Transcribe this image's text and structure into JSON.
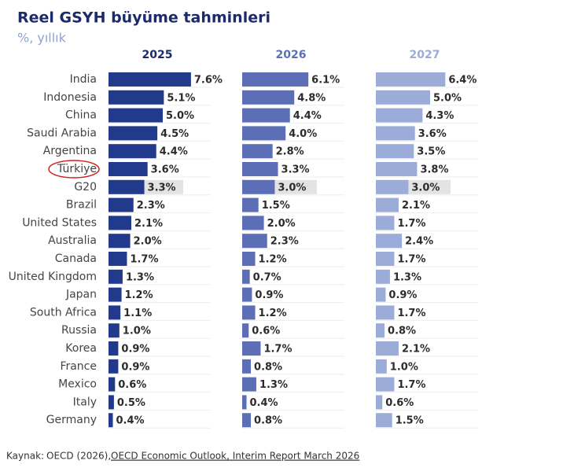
{
  "chart_data": {
    "type": "bar",
    "title": "Reel GSYH büyüme tahminleri",
    "subtitle": "%, yıllık",
    "categories": [
      "India",
      "Indonesia",
      "China",
      "Saudi Arabia",
      "Argentina",
      "Türkiye",
      "G20",
      "Brazil",
      "United States",
      "Australia",
      "Canada",
      "United Kingdom",
      "Japan",
      "South Africa",
      "Russia",
      "Korea",
      "France",
      "Mexico",
      "Italy",
      "Germany"
    ],
    "highlight_band_index": 6,
    "circled_category_index": 5,
    "series": [
      {
        "name": "2025",
        "color": "#213a8c",
        "values": [
          7.6,
          5.1,
          5.0,
          4.5,
          4.4,
          3.6,
          3.3,
          2.3,
          2.1,
          2.0,
          1.7,
          1.3,
          1.2,
          1.1,
          1.0,
          0.9,
          0.9,
          0.6,
          0.5,
          0.4
        ],
        "value_labels": [
          "7.6%",
          "5.1%",
          "5.0%",
          "4.5%",
          "4.4%",
          "3.6%",
          "3.3%",
          "2.3%",
          "2.1%",
          "2.0%",
          "1.7%",
          "1.3%",
          "1.2%",
          "1.1%",
          "1.0%",
          "0.9%",
          "0.9%",
          "0.6%",
          "0.5%",
          "0.4%"
        ]
      },
      {
        "name": "2026",
        "color": "#5c6fb6",
        "values": [
          6.1,
          4.8,
          4.4,
          4.0,
          2.8,
          3.3,
          3.0,
          1.5,
          2.0,
          2.3,
          1.2,
          0.7,
          0.9,
          1.2,
          0.6,
          1.7,
          0.8,
          1.3,
          0.4,
          0.8
        ],
        "value_labels": [
          "6.1%",
          "4.8%",
          "4.4%",
          "4.0%",
          "2.8%",
          "3.3%",
          "3.0%",
          "1.5%",
          "2.0%",
          "2.3%",
          "1.2%",
          "0.7%",
          "0.9%",
          "1.2%",
          "0.6%",
          "1.7%",
          "0.8%",
          "1.3%",
          "0.4%",
          "0.8%"
        ]
      },
      {
        "name": "2027",
        "color": "#9bacd9",
        "values": [
          6.4,
          5.0,
          4.3,
          3.6,
          3.5,
          3.8,
          3.0,
          2.1,
          1.7,
          2.4,
          1.7,
          1.3,
          0.9,
          1.7,
          0.8,
          2.1,
          1.0,
          1.7,
          0.6,
          1.5
        ],
        "value_labels": [
          "6.4%",
          "5.0%",
          "4.3%",
          "3.6%",
          "3.5%",
          "3.8%",
          "3.0%",
          "2.1%",
          "1.7%",
          "2.4%",
          "1.7%",
          "1.3%",
          "0.9%",
          "1.7%",
          "0.8%",
          "2.1%",
          "1.0%",
          "1.7%",
          "0.6%",
          "1.5%"
        ]
      }
    ]
  },
  "source": {
    "label": "Kaynak:",
    "author": "OECD (2026),",
    "link": "OECD Economic Outlook, Interim Report March 2026"
  }
}
